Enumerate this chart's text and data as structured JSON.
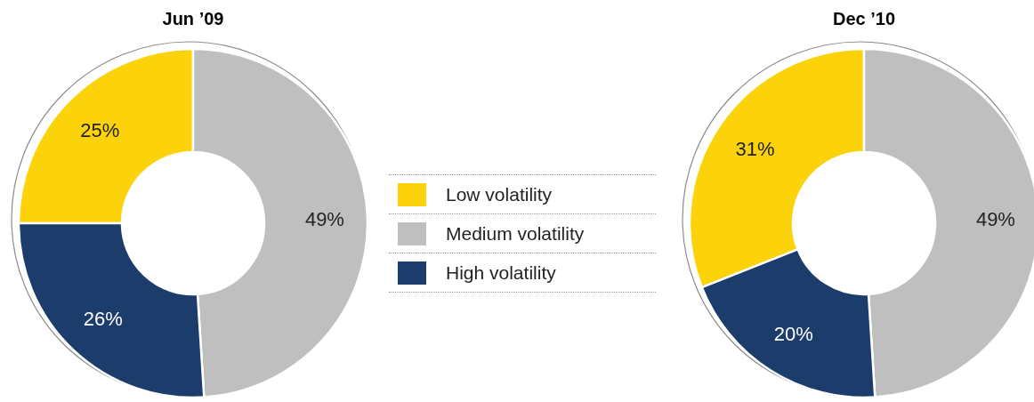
{
  "chart_data": {
    "type": "donut",
    "categories": [
      "Low volatility",
      "Medium volatility",
      "High volatility"
    ],
    "colors": [
      "#fcd20a",
      "#bfbfbf",
      "#1c3c6c"
    ],
    "legend": "right",
    "series": [
      {
        "name": "Jun ’09",
        "values": [
          25,
          49,
          26
        ],
        "value_labels": [
          "25%",
          "49%",
          "26%"
        ]
      },
      {
        "name": "Dec ’10",
        "values": [
          31,
          49,
          20
        ],
        "value_labels": [
          "31%",
          "49%",
          "20%"
        ]
      }
    ]
  }
}
